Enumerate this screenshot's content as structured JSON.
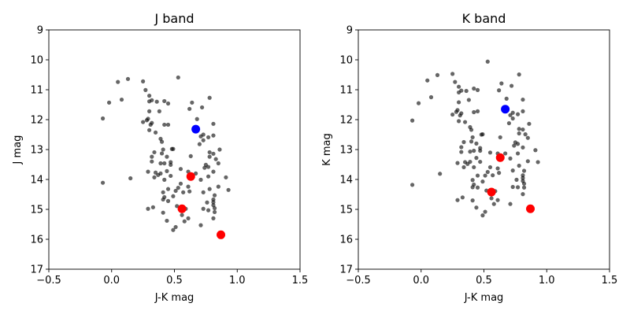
{
  "chart_data": [
    {
      "type": "scatter",
      "title": "J band",
      "xlabel": "J-K mag",
      "ylabel": "J mag",
      "xlim": [
        -0.5,
        1.5
      ],
      "ylim": [
        17,
        9
      ],
      "y_inverted": true,
      "xticks": [
        "−0.5",
        "0.0",
        "0.5",
        "1.0",
        "1.5"
      ],
      "xtick_values": [
        -0.5,
        0,
        0.5,
        1.0,
        1.5
      ],
      "yticks": [
        "9",
        "10",
        "11",
        "12",
        "13",
        "14",
        "15",
        "16",
        "17"
      ],
      "ytick_values": [
        9,
        10,
        11,
        12,
        13,
        14,
        15,
        16,
        17
      ],
      "y_quantity": "J",
      "grid": false
    },
    {
      "type": "scatter",
      "title": "K band",
      "xlabel": "J-K mag",
      "ylabel": "K mag",
      "xlim": [
        -0.5,
        1.5
      ],
      "ylim": [
        17,
        9
      ],
      "y_inverted": true,
      "xticks": [
        "−0.5",
        "0.0",
        "0.5",
        "1.0",
        "1.5"
      ],
      "xtick_values": [
        -0.5,
        0,
        0.5,
        1.0,
        1.5
      ],
      "yticks": [
        "9",
        "10",
        "11",
        "12",
        "13",
        "14",
        "15",
        "16",
        "17"
      ],
      "ytick_values": [
        9,
        10,
        11,
        12,
        13,
        14,
        15,
        16,
        17
      ],
      "y_quantity": "K = J - (J-K)",
      "grid": false
    }
  ],
  "series": {
    "field": {
      "color": "#000000",
      "opacity": 0.6,
      "stars_jk_j": [
        [
          0.05,
          10.74
        ],
        [
          0.13,
          10.64
        ],
        [
          0.25,
          10.72
        ],
        [
          0.53,
          10.59
        ],
        [
          0.27,
          11.01
        ],
        [
          0.3,
          11.2
        ],
        [
          -0.02,
          11.43
        ],
        [
          0.08,
          11.33
        ],
        [
          0.3,
          11.39
        ],
        [
          0.32,
          11.35
        ],
        [
          0.36,
          11.4
        ],
        [
          0.42,
          11.38
        ],
        [
          0.45,
          11.46
        ],
        [
          0.78,
          11.27
        ],
        [
          0.64,
          11.43
        ],
        [
          0.72,
          11.59
        ],
        [
          0.62,
          11.64
        ],
        [
          0.3,
          11.72
        ],
        [
          0.38,
          11.72
        ],
        [
          -0.07,
          11.96
        ],
        [
          0.68,
          11.98
        ],
        [
          0.25,
          12.08
        ],
        [
          0.28,
          12.02
        ],
        [
          0.29,
          11.97
        ],
        [
          0.31,
          12.17
        ],
        [
          0.32,
          12.11
        ],
        [
          0.42,
          12.17
        ],
        [
          0.45,
          12.17
        ],
        [
          0.81,
          12.14
        ],
        [
          0.3,
          12.35
        ],
        [
          0.35,
          12.43
        ],
        [
          0.71,
          12.56
        ],
        [
          0.73,
          12.5
        ],
        [
          0.77,
          12.59
        ],
        [
          0.81,
          12.53
        ],
        [
          0.39,
          12.64
        ],
        [
          0.4,
          12.74
        ],
        [
          0.73,
          12.69
        ],
        [
          0.7,
          12.82
        ],
        [
          0.86,
          13.0
        ],
        [
          0.41,
          13.0
        ],
        [
          0.48,
          12.98
        ],
        [
          0.49,
          12.98
        ],
        [
          0.34,
          13.09
        ],
        [
          0.4,
          13.13
        ],
        [
          0.78,
          13.09
        ],
        [
          0.81,
          13.14
        ],
        [
          0.32,
          13.24
        ],
        [
          0.44,
          13.24
        ],
        [
          0.63,
          13.22
        ],
        [
          0.78,
          13.24
        ],
        [
          0.83,
          13.32
        ],
        [
          0.85,
          13.46
        ],
        [
          0.32,
          13.4
        ],
        [
          0.39,
          13.46
        ],
        [
          0.42,
          13.46
        ],
        [
          0.47,
          13.42
        ],
        [
          0.47,
          13.51
        ],
        [
          0.75,
          13.51
        ],
        [
          0.77,
          13.58
        ],
        [
          0.74,
          13.61
        ],
        [
          0.55,
          13.65
        ],
        [
          0.29,
          13.74
        ],
        [
          0.35,
          13.77
        ],
        [
          0.39,
          13.8
        ],
        [
          0.37,
          13.85
        ],
        [
          0.34,
          13.93
        ],
        [
          0.44,
          13.72
        ],
        [
          0.47,
          13.88
        ],
        [
          0.42,
          14.01
        ],
        [
          0.61,
          13.74
        ],
        [
          0.67,
          13.8
        ],
        [
          0.81,
          13.74
        ],
        [
          0.77,
          13.9
        ],
        [
          0.91,
          13.93
        ],
        [
          0.71,
          14.01
        ],
        [
          -0.07,
          14.11
        ],
        [
          0.15,
          13.96
        ],
        [
          0.55,
          14.14
        ],
        [
          0.53,
          14.28
        ],
        [
          0.51,
          14.38
        ],
        [
          0.45,
          14.32
        ],
        [
          0.41,
          14.43
        ],
        [
          0.49,
          14.56
        ],
        [
          0.42,
          14.59
        ],
        [
          0.41,
          14.67
        ],
        [
          0.45,
          14.72
        ],
        [
          0.61,
          14.24
        ],
        [
          0.57,
          14.43
        ],
        [
          0.62,
          14.4
        ],
        [
          0.85,
          14.24
        ],
        [
          0.93,
          14.35
        ],
        [
          0.78,
          14.32
        ],
        [
          0.73,
          14.43
        ],
        [
          0.82,
          14.53
        ],
        [
          0.81,
          14.67
        ],
        [
          0.81,
          14.76
        ],
        [
          0.76,
          14.77
        ],
        [
          0.81,
          14.86
        ],
        [
          0.82,
          14.96
        ],
        [
          0.73,
          14.98
        ],
        [
          0.77,
          15.03
        ],
        [
          0.82,
          15.09
        ],
        [
          0.29,
          14.98
        ],
        [
          0.33,
          14.93
        ],
        [
          0.59,
          14.98
        ],
        [
          0.52,
          14.89
        ],
        [
          0.41,
          15.11
        ],
        [
          0.56,
          15.19
        ],
        [
          0.61,
          15.3
        ],
        [
          0.58,
          15.4
        ],
        [
          0.44,
          15.38
        ],
        [
          0.81,
          15.3
        ],
        [
          0.71,
          15.53
        ],
        [
          0.51,
          15.59
        ],
        [
          0.49,
          15.69
        ]
      ]
    },
    "blue": {
      "color": "#0000ff",
      "stars_jk_j": [
        [
          0.67,
          12.32
        ]
      ]
    },
    "red": {
      "color": "#ff0000",
      "stars_jk_j": [
        [
          0.63,
          13.9
        ],
        [
          0.56,
          14.98
        ],
        [
          0.87,
          15.85
        ]
      ]
    }
  }
}
